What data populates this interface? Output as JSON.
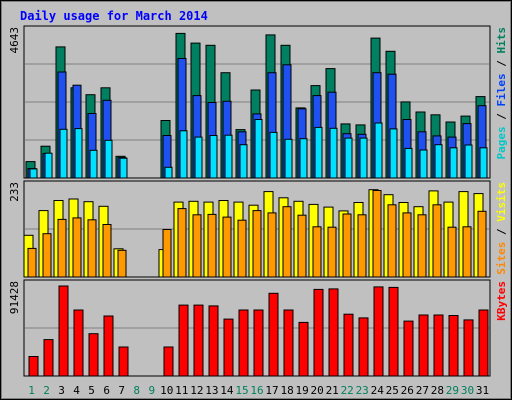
{
  "chart_data": {
    "type": "bar",
    "title": "Daily usage for March 2014",
    "days": [
      "1",
      "2",
      "3",
      "4",
      "5",
      "6",
      "7",
      "8",
      "9",
      "10",
      "11",
      "12",
      "13",
      "14",
      "15",
      "16",
      "17",
      "18",
      "19",
      "20",
      "21",
      "22",
      "23",
      "24",
      "25",
      "26",
      "27",
      "28",
      "29",
      "30",
      "31"
    ],
    "weekend_days": [
      "1",
      "2",
      "8",
      "9",
      "15",
      "16",
      "22",
      "23",
      "29",
      "30"
    ],
    "panels": [
      {
        "id": "hits-files-pages",
        "max_label": "4643",
        "ymax": 4643,
        "legend": [
          {
            "text": "Pages",
            "color": "#00c8c8"
          },
          {
            "text": "Files",
            "color": "#0040ff"
          },
          {
            "text": "Hits",
            "color": "#00805c"
          }
        ],
        "series": [
          {
            "name": "Hits",
            "color": "#008060",
            "values": [
              520,
              1010,
              4170,
              2870,
              2650,
              2870,
              690,
              0,
              0,
              1830,
              4600,
              4290,
              4220,
              3350,
              1540,
              2800,
              4550,
              4220,
              2230,
              2940,
              3480,
              1720,
              1690,
              4450,
              4030,
              2420,
              2100,
              2010,
              1780,
              1970,
              2590
            ]
          },
          {
            "name": "Files",
            "color": "#2050f0",
            "values": [
              300,
              780,
              3370,
              2950,
              2050,
              2470,
              650,
              0,
              0,
              1350,
              3800,
              2620,
              2400,
              2440,
              1470,
              2040,
              3350,
              3600,
              2200,
              2620,
              2730,
              1410,
              1390,
              3350,
              3300,
              1860,
              1470,
              1340,
              1300,
              1730,
              2300
            ]
          },
          {
            "name": "Pages",
            "color": "#00e0ff",
            "values": [
              290,
              790,
              1550,
              1570,
              880,
              1200,
              630,
              0,
              0,
              340,
              1500,
              1300,
              1350,
              1360,
              1060,
              1860,
              1450,
              1230,
              1250,
              1610,
              1580,
              1270,
              1270,
              1750,
              1560,
              940,
              890,
              1060,
              960,
              1050,
              960
            ]
          }
        ]
      },
      {
        "id": "visits-sites",
        "max_label": "233",
        "ymax": 233,
        "legend": [
          {
            "text": "Sites",
            "color": "#ff8800"
          },
          {
            "text": "Visits",
            "color": "#ffff00"
          }
        ],
        "series": [
          {
            "name": "Visits",
            "color": "#ffff00",
            "values": [
              108,
              172,
              198,
              202,
              195,
              183,
              73,
              0,
              0,
              71,
              194,
              196,
              194,
              198,
              194,
              186,
              221,
              205,
              196,
              188,
              181,
              171,
              193,
              226,
              213,
              193,
              182,
              223,
              194,
              221,
              216
            ]
          },
          {
            "name": "Sites",
            "color": "#ff9900",
            "values": [
              74,
              112,
              149,
              153,
              148,
              136,
              69,
              0,
              0,
              123,
              177,
              161,
              162,
              155,
              147,
              172,
              166,
              182,
              160,
              130,
              129,
              163,
              161,
              224,
              187,
              166,
              161,
              187,
              129,
              130,
              170
            ]
          }
        ]
      },
      {
        "id": "kbytes",
        "max_label": "91428",
        "ymax": 91428,
        "legend": [
          {
            "text": "KBytes",
            "color": "#ff0000"
          }
        ],
        "series": [
          {
            "name": "KBytes",
            "color": "#ff0000",
            "values": [
              19800,
              37000,
              91400,
              67000,
              43000,
              61000,
              29500,
              0,
              0,
              29500,
              72000,
              72000,
              71200,
              57800,
              67000,
              67000,
              84000,
              67000,
              54500,
              88000,
              88500,
              62800,
              59000,
              90500,
              90000,
              55800,
              62000,
              62000,
              61500,
              57000,
              67000
            ]
          }
        ]
      }
    ]
  }
}
